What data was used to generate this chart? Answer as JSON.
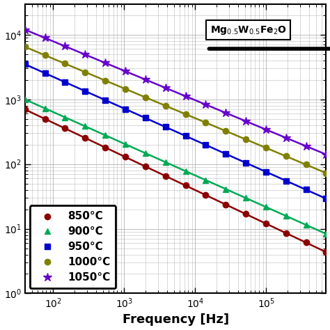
{
  "xlabel": "Frequency [Hz]",
  "xmin": 40,
  "xmax": 700000,
  "ymin": 1,
  "ymax": 30000,
  "series": [
    {
      "label": "850°C",
      "color": "#8B0000",
      "marker": "o",
      "start_y": 700,
      "slope": -0.52
    },
    {
      "label": "900°C",
      "color": "#00AA55",
      "marker": "^",
      "start_y": 1000,
      "slope": -0.49
    },
    {
      "label": "950°C",
      "color": "#0000CC",
      "marker": "s",
      "start_y": 3500,
      "slope": -0.49
    },
    {
      "label": "1000°C",
      "color": "#808000",
      "marker": "o",
      "start_y": 6500,
      "slope": -0.46
    },
    {
      "label": "1050°C",
      "color": "#6600CC",
      "marker": "*",
      "start_y": 12000,
      "slope": -0.455
    }
  ],
  "annotation_text": "Mg$_{0.5}$W$_{0.5}$Fe$_2$O",
  "grid_color": "#BBBBBB",
  "background_color": "#FFFFFF"
}
